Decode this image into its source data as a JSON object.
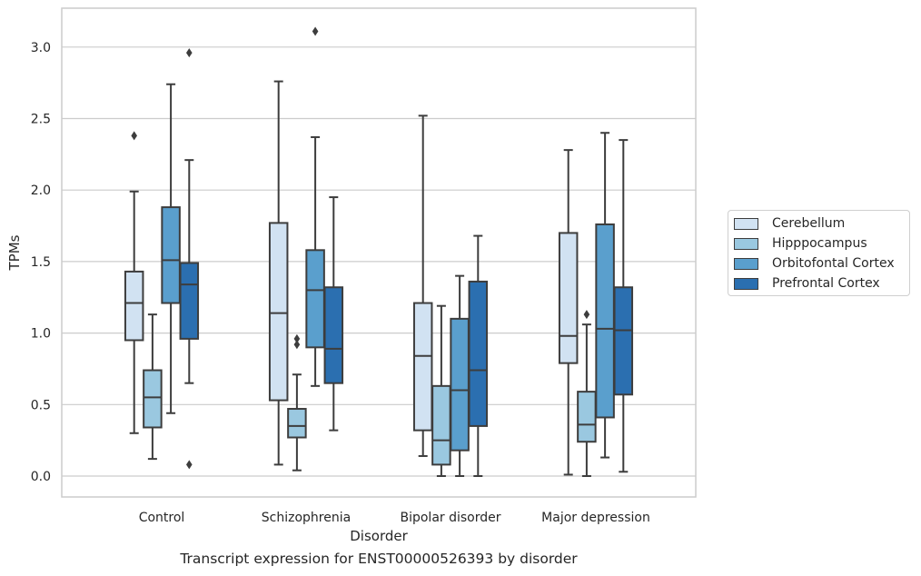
{
  "chart_data": {
    "type": "box",
    "title": "",
    "caption": "Transcript expression for ENST00000526393 by disorder",
    "xlabel": "Disorder",
    "ylabel": "TPMs",
    "ylim": [
      -0.15,
      3.27
    ],
    "yticks": [
      "0.0",
      "0.5",
      "1.0",
      "1.5",
      "2.0",
      "2.5",
      "3.0"
    ],
    "grid": "horizontal",
    "legend_position": "right",
    "categories": [
      "Control",
      "Schizophrenia",
      "Bipolar disorder",
      "Major depression"
    ],
    "series": [
      {
        "name": "Cerebellum",
        "color": "#d1e2f2",
        "boxes": [
          {
            "whisker_low": 0.3,
            "q1": 0.95,
            "median": 1.21,
            "q3": 1.43,
            "whisker_high": 1.99,
            "outliers": [
              2.38
            ]
          },
          {
            "whisker_low": 0.08,
            "q1": 0.53,
            "median": 1.14,
            "q3": 1.77,
            "whisker_high": 2.76,
            "outliers": []
          },
          {
            "whisker_low": 0.14,
            "q1": 0.32,
            "median": 0.84,
            "q3": 1.21,
            "whisker_high": 2.52,
            "outliers": []
          },
          {
            "whisker_low": 0.01,
            "q1": 0.79,
            "median": 0.98,
            "q3": 1.7,
            "whisker_high": 2.28,
            "outliers": []
          }
        ]
      },
      {
        "name": "Hipppocampus",
        "color": "#9ac8e0",
        "boxes": [
          {
            "whisker_low": 0.12,
            "q1": 0.34,
            "median": 0.55,
            "q3": 0.74,
            "whisker_high": 1.13,
            "outliers": []
          },
          {
            "whisker_low": 0.04,
            "q1": 0.27,
            "median": 0.35,
            "q3": 0.47,
            "whisker_high": 0.71,
            "outliers": [
              0.92,
              0.96
            ]
          },
          {
            "whisker_low": 0.0,
            "q1": 0.08,
            "median": 0.25,
            "q3": 0.63,
            "whisker_high": 1.19,
            "outliers": []
          },
          {
            "whisker_low": 0.0,
            "q1": 0.24,
            "median": 0.36,
            "q3": 0.59,
            "whisker_high": 1.06,
            "outliers": [
              1.13
            ]
          }
        ]
      },
      {
        "name": "Orbitofontal Cortex",
        "color": "#5a9fcd",
        "boxes": [
          {
            "whisker_low": 0.44,
            "q1": 1.21,
            "median": 1.51,
            "q3": 1.88,
            "whisker_high": 2.74,
            "outliers": []
          },
          {
            "whisker_low": 0.63,
            "q1": 0.9,
            "median": 1.3,
            "q3": 1.58,
            "whisker_high": 2.37,
            "outliers": [
              3.11
            ]
          },
          {
            "whisker_low": 0.0,
            "q1": 0.18,
            "median": 0.6,
            "q3": 1.1,
            "whisker_high": 1.4,
            "outliers": []
          },
          {
            "whisker_low": 0.13,
            "q1": 0.41,
            "median": 1.03,
            "q3": 1.76,
            "whisker_high": 2.4,
            "outliers": []
          }
        ]
      },
      {
        "name": "Prefrontal Cortex",
        "color": "#2b6fb0",
        "boxes": [
          {
            "whisker_low": 0.65,
            "q1": 0.96,
            "median": 1.34,
            "q3": 1.49,
            "whisker_high": 2.21,
            "outliers": [
              2.96,
              0.08
            ]
          },
          {
            "whisker_low": 0.32,
            "q1": 0.65,
            "median": 0.89,
            "q3": 1.32,
            "whisker_high": 1.95,
            "outliers": []
          },
          {
            "whisker_low": 0.0,
            "q1": 0.35,
            "median": 0.74,
            "q3": 1.36,
            "whisker_high": 1.68,
            "outliers": []
          },
          {
            "whisker_low": 0.03,
            "q1": 0.57,
            "median": 1.02,
            "q3": 1.32,
            "whisker_high": 2.35,
            "outliers": []
          }
        ]
      }
    ]
  }
}
